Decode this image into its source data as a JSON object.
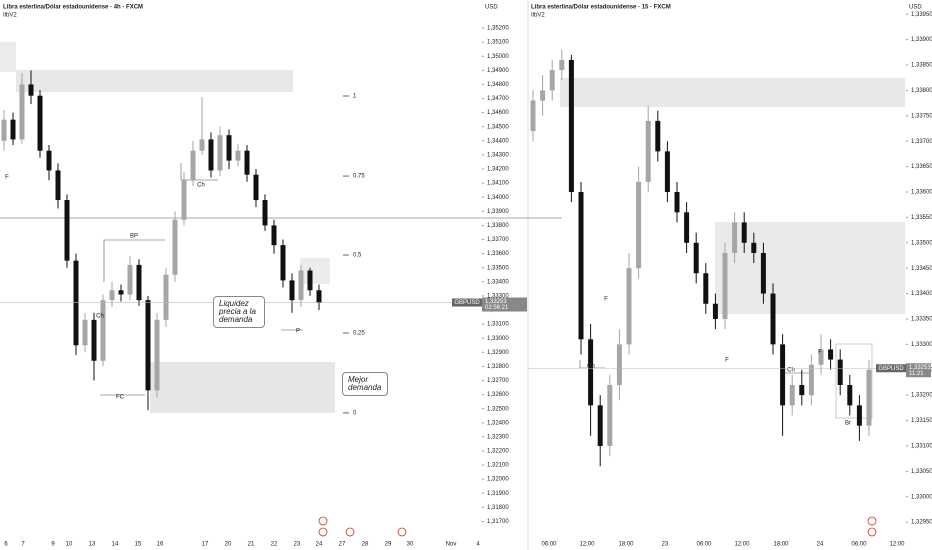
{
  "chart_data": [
    {
      "type": "candlestick",
      "title": "Libra esterlina/Dólar estadounidense · 4h · FXCM",
      "subtitle": "IlbV2",
      "currency": "USD",
      "up_color": "#a6a6a6",
      "down_color": "#111111",
      "open": [
        1.344,
        1.3455,
        1.3441,
        1.348,
        1.3472,
        1.3433,
        1.3419,
        1.3398,
        1.3355,
        1.3295,
        1.3313,
        1.3284,
        1.3327,
        1.3334,
        1.3331,
        1.3352,
        1.3327,
        1.3263,
        1.3313,
        1.3345,
        1.3384,
        1.3412,
        1.3433,
        1.3441,
        1.3419,
        1.3444,
        1.3426,
        1.3433,
        1.3416,
        1.3398,
        1.338,
        1.3366,
        1.3341,
        1.3327,
        1.3348,
        1.3334
      ],
      "high": [
        1.3462,
        1.346,
        1.3488,
        1.349,
        1.3476,
        1.3437,
        1.3424,
        1.3402,
        1.336,
        1.3318,
        1.3318,
        1.3331,
        1.334,
        1.3338,
        1.3358,
        1.3356,
        1.333,
        1.3318,
        1.335,
        1.339,
        1.3418,
        1.344,
        1.3471,
        1.3446,
        1.345,
        1.3448,
        1.3438,
        1.3437,
        1.342,
        1.3402,
        1.3384,
        1.337,
        1.3346,
        1.3352,
        1.335,
        1.3338
      ],
      "low": [
        1.3433,
        1.3437,
        1.3438,
        1.3466,
        1.3428,
        1.3412,
        1.3392,
        1.335,
        1.3288,
        1.329,
        1.327,
        1.328,
        1.3322,
        1.3326,
        1.3327,
        1.3323,
        1.3249,
        1.3258,
        1.3308,
        1.334,
        1.338,
        1.3408,
        1.343,
        1.3414,
        1.3415,
        1.342,
        1.3422,
        1.3411,
        1.3393,
        1.3376,
        1.336,
        1.3336,
        1.3318,
        1.3322,
        1.333,
        1.332
      ],
      "close": [
        1.3455,
        1.3441,
        1.348,
        1.3472,
        1.3433,
        1.3419,
        1.3398,
        1.3355,
        1.3295,
        1.3313,
        1.3284,
        1.3327,
        1.3334,
        1.3331,
        1.3352,
        1.3327,
        1.3263,
        1.3313,
        1.3345,
        1.3384,
        1.3412,
        1.3433,
        1.3441,
        1.3419,
        1.3444,
        1.3426,
        1.3433,
        1.3416,
        1.3398,
        1.338,
        1.3366,
        1.3341,
        1.3327,
        1.3348,
        1.3334,
        1.3325
      ],
      "ylim": [
        1.31533,
        1.35399
      ],
      "yticks": [
        {
          "value": 1.317,
          "label": "1,31700"
        },
        {
          "value": 1.318,
          "label": "1,31800"
        },
        {
          "value": 1.319,
          "label": "1,31900"
        },
        {
          "value": 1.32,
          "label": "1,32000"
        },
        {
          "value": 1.321,
          "label": "1,32100"
        },
        {
          "value": 1.322,
          "label": "1,32200"
        },
        {
          "value": 1.323,
          "label": "1,32300"
        },
        {
          "value": 1.324,
          "label": "1,32400"
        },
        {
          "value": 1.325,
          "label": "1,32500"
        },
        {
          "value": 1.326,
          "label": "1,32600"
        },
        {
          "value": 1.327,
          "label": "1,32700"
        },
        {
          "value": 1.328,
          "label": "1,32800"
        },
        {
          "value": 1.329,
          "label": "1,32900"
        },
        {
          "value": 1.33,
          "label": "1,33000"
        },
        {
          "value": 1.331,
          "label": "1,33100"
        },
        {
          "value": 1.332,
          "label": "1,33200"
        },
        {
          "value": 1.333,
          "label": "1,33300"
        },
        {
          "value": 1.334,
          "label": "1,33400"
        },
        {
          "value": 1.335,
          "label": "1,33500"
        },
        {
          "value": 1.336,
          "label": "1,33600"
        },
        {
          "value": 1.337,
          "label": "1,33700"
        },
        {
          "value": 1.338,
          "label": "1,33800"
        },
        {
          "value": 1.339,
          "label": "1,33900"
        },
        {
          "value": 1.34,
          "label": "1,34000"
        },
        {
          "value": 1.341,
          "label": "1,34100"
        },
        {
          "value": 1.342,
          "label": "1,34200"
        },
        {
          "value": 1.343,
          "label": "1,34300"
        },
        {
          "value": 1.344,
          "label": "1,34400"
        },
        {
          "value": 1.345,
          "label": "1,34500"
        },
        {
          "value": 1.346,
          "label": "1,34600"
        },
        {
          "value": 1.347,
          "label": "1,34700"
        },
        {
          "value": 1.348,
          "label": "1,34800"
        },
        {
          "value": 1.349,
          "label": "1,34900"
        },
        {
          "value": 1.35,
          "label": "1,35000"
        },
        {
          "value": 1.351,
          "label": "1,35100"
        },
        {
          "value": 1.352,
          "label": "1,35200"
        }
      ],
      "xticks": [
        "6",
        "7",
        "9",
        "10",
        "13",
        "14",
        "15",
        "16",
        "17",
        "20",
        "21",
        "22",
        "23",
        "24",
        "27",
        "28",
        "29",
        "30",
        "Nov",
        "4"
      ],
      "fib_levels": [
        {
          "value": 1.34718,
          "label": "1"
        },
        {
          "value": 1.3415,
          "label": "0,75"
        },
        {
          "value": 1.3359,
          "label": "0,5"
        },
        {
          "value": 1.33037,
          "label": "0,25"
        },
        {
          "value": 1.3247,
          "label": "0"
        }
      ],
      "symbol": "GBPUSD",
      "last_price": {
        "value": 1.33253,
        "label": "1,33253"
      },
      "countdown": "02:56:21",
      "labels": [
        "F",
        "Ch",
        "BP",
        "FC",
        "Ch",
        "P"
      ],
      "notes": [
        "Liquidez precia a la demanda",
        "Mejor demanda"
      ]
    },
    {
      "type": "candlestick",
      "title": "Libra esterlina/Dólar estadounidense · 15 · FXCM",
      "subtitle": "IlbV2",
      "currency": "USD",
      "up_color": "#a6a6a6",
      "down_color": "#111111",
      "open": [
        1.3372,
        1.3378,
        1.338,
        1.3384,
        1.3386,
        1.336,
        1.3331,
        1.3318,
        1.331,
        1.3322,
        1.333,
        1.3345,
        1.3362,
        1.3374,
        1.3368,
        1.336,
        1.3356,
        1.335,
        1.3344,
        1.3338,
        1.3335,
        1.3348,
        1.3354,
        1.335,
        1.3348,
        1.334,
        1.333,
        1.3318,
        1.3322,
        1.332,
        1.3326,
        1.3329,
        1.3327,
        1.3322,
        1.3318,
        1.3314
      ],
      "high": [
        1.338,
        1.3383,
        1.3386,
        1.3388,
        1.3387,
        1.3362,
        1.3334,
        1.332,
        1.3324,
        1.3333,
        1.3348,
        1.3365,
        1.3377,
        1.3376,
        1.337,
        1.3362,
        1.3358,
        1.3352,
        1.3346,
        1.334,
        1.335,
        1.3356,
        1.3356,
        1.3352,
        1.335,
        1.3342,
        1.3332,
        1.3324,
        1.3325,
        1.3328,
        1.3332,
        1.3331,
        1.3329,
        1.3324,
        1.332,
        1.3327
      ],
      "low": [
        1.337,
        1.3375,
        1.3378,
        1.3382,
        1.3358,
        1.3328,
        1.3312,
        1.3306,
        1.3308,
        1.3319,
        1.3328,
        1.3343,
        1.336,
        1.3366,
        1.3358,
        1.3354,
        1.3348,
        1.3342,
        1.3336,
        1.3333,
        1.3333,
        1.3346,
        1.3348,
        1.3346,
        1.3338,
        1.3328,
        1.3312,
        1.3316,
        1.3318,
        1.3318,
        1.3324,
        1.3325,
        1.332,
        1.3316,
        1.3311,
        1.3312
      ],
      "close": [
        1.3378,
        1.338,
        1.3384,
        1.3386,
        1.336,
        1.3331,
        1.3318,
        1.331,
        1.3322,
        1.333,
        1.3345,
        1.3362,
        1.3374,
        1.3368,
        1.336,
        1.3356,
        1.335,
        1.3344,
        1.3338,
        1.3335,
        1.3348,
        1.3354,
        1.335,
        1.3348,
        1.334,
        1.333,
        1.3318,
        1.3322,
        1.332,
        1.3326,
        1.3329,
        1.3327,
        1.3322,
        1.3318,
        1.3314,
        1.3325
      ],
      "ylim": [
        1.32905,
        1.33978
      ],
      "yticks": [
        {
          "value": 1.3295,
          "label": "1,32950"
        },
        {
          "value": 1.33,
          "label": "1,33000"
        },
        {
          "value": 1.3305,
          "label": "1,33050"
        },
        {
          "value": 1.331,
          "label": "1,33100"
        },
        {
          "value": 1.3315,
          "label": "1,33150"
        },
        {
          "value": 1.332,
          "label": "1,33200"
        },
        {
          "value": 1.3325,
          "label": "1,33250"
        },
        {
          "value": 1.333,
          "label": "1,33300"
        },
        {
          "value": 1.3335,
          "label": "1,33350"
        },
        {
          "value": 1.334,
          "label": "1,33400"
        },
        {
          "value": 1.3345,
          "label": "1,33450"
        },
        {
          "value": 1.335,
          "label": "1,33500"
        },
        {
          "value": 1.3355,
          "label": "1,33550"
        },
        {
          "value": 1.336,
          "label": "1,33600"
        },
        {
          "value": 1.3365,
          "label": "1,33650"
        },
        {
          "value": 1.337,
          "label": "1,33700"
        },
        {
          "value": 1.3375,
          "label": "1,33750"
        },
        {
          "value": 1.338,
          "label": "1,33800"
        },
        {
          "value": 1.3385,
          "label": "1,33850"
        },
        {
          "value": 1.339,
          "label": "1,33900"
        },
        {
          "value": 1.3395,
          "label": "1,33950"
        }
      ],
      "xticks": [
        "06:00",
        "12:00",
        "18:00",
        "23",
        "06:00",
        "12:00",
        "18:00",
        "24",
        "06:00",
        "12:00"
      ],
      "symbol": "GBPUSD",
      "last_price": {
        "value": 1.33253,
        "label": "1,33253"
      },
      "countdown": "11:21",
      "labels": [
        "Ch",
        "F",
        "F",
        "Ch",
        "F",
        "Br"
      ]
    }
  ]
}
